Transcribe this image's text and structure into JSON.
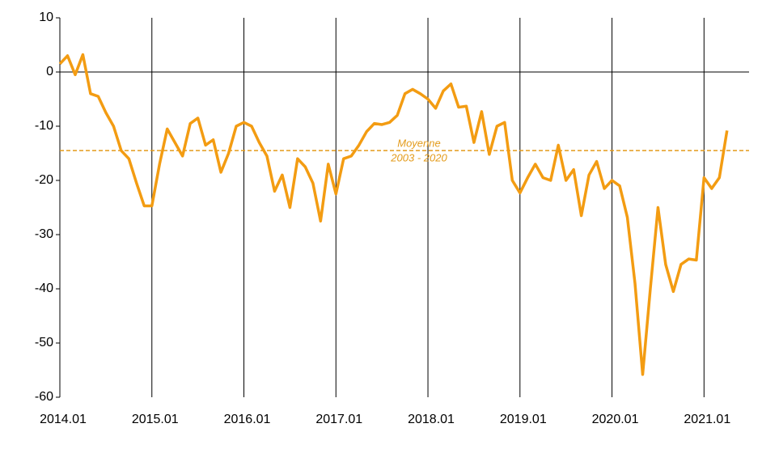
{
  "chart_data": {
    "type": "line",
    "categories": [
      "2014.01",
      null,
      null,
      null,
      null,
      null,
      null,
      null,
      null,
      null,
      null,
      null,
      "2015.01",
      null,
      null,
      null,
      null,
      null,
      null,
      null,
      null,
      null,
      null,
      null,
      "2016.01",
      null,
      null,
      null,
      null,
      null,
      null,
      null,
      null,
      null,
      null,
      null,
      "2017.01",
      null,
      null,
      null,
      null,
      null,
      null,
      null,
      null,
      null,
      null,
      null,
      "2018.01",
      null,
      null,
      null,
      null,
      null,
      null,
      null,
      null,
      null,
      null,
      null,
      "2019.01",
      null,
      null,
      null,
      null,
      null,
      null,
      null,
      null,
      null,
      null,
      null,
      "2020.01",
      null,
      null,
      null,
      null,
      null,
      null,
      null,
      null,
      null,
      null,
      null,
      "2021.01",
      null,
      null,
      null
    ],
    "series": [
      {
        "color": "#f39c12",
        "values": [
          1.5,
          3,
          -0.5,
          3.2,
          -4,
          -4.5,
          -7.5,
          -10,
          -14.5,
          -16,
          -20.5,
          -24.7,
          -24.7,
          -17,
          -10.5,
          -13,
          -15.5,
          -9.5,
          -8.5,
          -13.5,
          -12.5,
          -18.5,
          -15,
          -10,
          -9.3,
          -10,
          -13,
          -15.5,
          -22,
          -19,
          -25,
          -16,
          -17.5,
          -20.5,
          -27.5,
          -17,
          -22.5,
          -16,
          -15.5,
          -13.5,
          -11,
          -9.5,
          -9.7,
          -9.3,
          -8,
          -4,
          -3.2,
          -4,
          -5,
          -6.7,
          -3.5,
          -2.2,
          -6.5,
          -6.3,
          -13,
          -7.3,
          -15.2,
          -10,
          -9.3,
          -20,
          -22.3,
          -19.5,
          -17,
          -19.5,
          -20,
          -13.5,
          -20,
          -18,
          -26.5,
          -19,
          -16.5,
          -21.5,
          -20,
          -21,
          -26.8,
          -39,
          -55.8,
          -40,
          -25,
          -35.5,
          -40.5,
          -35.5,
          -34.5,
          -34.7,
          -19.5,
          -21.5,
          -19.5,
          -10.8
        ]
      }
    ],
    "ylim": [
      -60,
      10
    ],
    "yticks": [
      10,
      0,
      -10,
      -20,
      -30,
      -40,
      -50,
      -60
    ],
    "reference_line": {
      "value": -14.5,
      "color": "#e39b1b",
      "label": [
        "Moyenne",
        "2003 - 2020"
      ]
    },
    "grid": true
  }
}
